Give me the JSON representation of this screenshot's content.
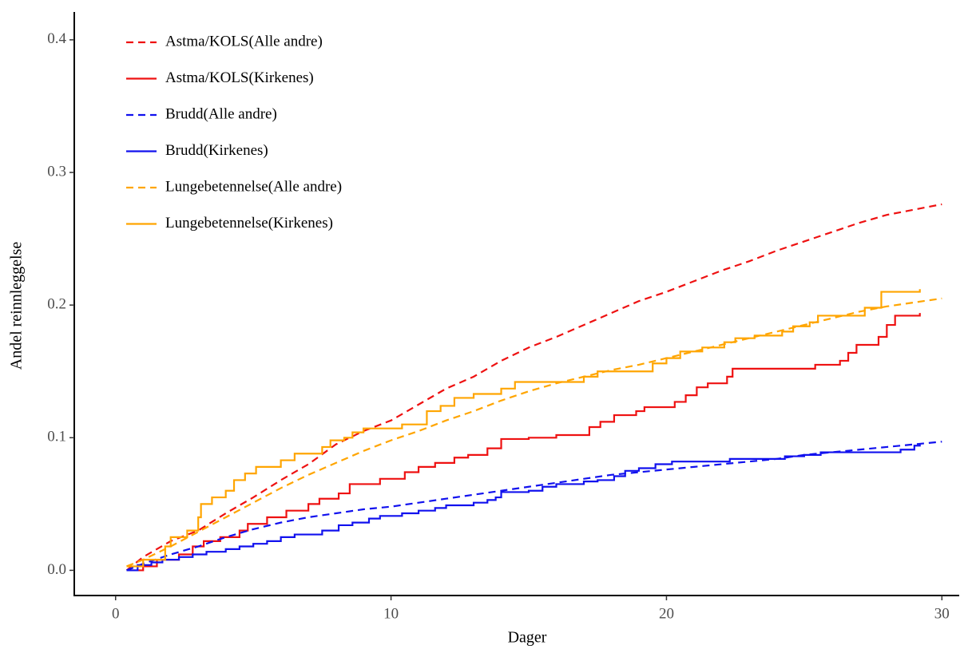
{
  "chart_data": {
    "type": "line",
    "x_label": "Dager",
    "y_label": "Andel reinnleggelse",
    "xlim": [
      -1.5,
      30.6
    ],
    "ylim": [
      -0.019,
      0.421
    ],
    "xticks": [
      0,
      10,
      20,
      30
    ],
    "yticks": [
      {
        "value": 0,
        "label": "0.0"
      },
      0.1,
      0.2,
      0.3,
      0.4
    ],
    "grid": false,
    "legend": "top-left",
    "series": [
      {
        "name": "Astma/KOLS(Alle andre)",
        "color": "#ee1111",
        "dashed": true,
        "step": false,
        "x": [
          0.4,
          1,
          2,
          3,
          4,
          5,
          6,
          7,
          8,
          9,
          10,
          11,
          12,
          13,
          14,
          15,
          16,
          17,
          18,
          19,
          20,
          21,
          22,
          23,
          24,
          25,
          26,
          27,
          28,
          29,
          30
        ],
        "values": [
          0,
          0.01,
          0.022,
          0.03,
          0.043,
          0.055,
          0.068,
          0.08,
          0.095,
          0.105,
          0.113,
          0.125,
          0.137,
          0.146,
          0.158,
          0.168,
          0.176,
          0.185,
          0.194,
          0.203,
          0.21,
          0.218,
          0.226,
          0.233,
          0.241,
          0.248,
          0.255,
          0.262,
          0.268,
          0.272,
          0.276
        ]
      },
      {
        "name": "Astma/KOLS(Kirkenes)",
        "color": "#ee1111",
        "dashed": false,
        "step": true,
        "x": [
          0.4,
          1,
          1.5,
          2.3,
          2.8,
          3.2,
          3.8,
          4.5,
          4.8,
          5.5,
          6.2,
          7,
          7.4,
          8.1,
          8.5,
          9.6,
          10.5,
          11,
          11.6,
          12.3,
          12.8,
          13.5,
          14,
          15,
          16,
          17.2,
          17.6,
          18.1,
          18.9,
          19.2,
          20.3,
          20.7,
          21.1,
          21.5,
          22.2,
          22.4,
          25.4,
          26.3,
          26.6,
          26.9,
          27.7,
          28,
          28.3,
          29.2
        ],
        "values": [
          0,
          0.003,
          0.008,
          0.012,
          0.018,
          0.022,
          0.025,
          0.03,
          0.035,
          0.04,
          0.045,
          0.05,
          0.054,
          0.058,
          0.065,
          0.069,
          0.074,
          0.078,
          0.081,
          0.085,
          0.087,
          0.092,
          0.099,
          0.1,
          0.102,
          0.108,
          0.112,
          0.117,
          0.12,
          0.123,
          0.127,
          0.132,
          0.138,
          0.141,
          0.146,
          0.152,
          0.155,
          0.158,
          0.164,
          0.17,
          0.176,
          0.185,
          0.192,
          0.194
        ]
      },
      {
        "name": "Brudd(Alle andre)",
        "color": "#1111ee",
        "dashed": true,
        "step": false,
        "x": [
          0.4,
          1,
          2,
          3,
          4,
          5,
          6,
          7,
          8,
          9,
          10,
          11,
          12,
          13,
          14,
          15,
          16,
          17,
          18,
          19,
          20,
          21,
          22,
          23,
          24,
          25,
          26,
          27,
          28,
          29,
          30
        ],
        "values": [
          0,
          0.005,
          0.012,
          0.018,
          0.025,
          0.031,
          0.036,
          0.04,
          0.043,
          0.046,
          0.048,
          0.051,
          0.054,
          0.057,
          0.06,
          0.063,
          0.066,
          0.069,
          0.072,
          0.074,
          0.076,
          0.078,
          0.08,
          0.082,
          0.084,
          0.087,
          0.089,
          0.091,
          0.093,
          0.095,
          0.097
        ]
      },
      {
        "name": "Brudd(Kirkenes)",
        "color": "#1111ee",
        "dashed": false,
        "step": true,
        "x": [
          0.4,
          0.8,
          1.3,
          1.7,
          2.3,
          2.8,
          3.3,
          4,
          4.5,
          5,
          5.5,
          6,
          6.5,
          7.5,
          8.1,
          8.6,
          9.2,
          9.6,
          10.4,
          11,
          11.6,
          12,
          13,
          13.5,
          13.8,
          14,
          15,
          15.5,
          16,
          17,
          17.5,
          18.1,
          18.5,
          19,
          19.6,
          20.2,
          22.3,
          24.3,
          25,
          25.6,
          28.5,
          29,
          29.2
        ],
        "values": [
          0,
          0.004,
          0.006,
          0.008,
          0.01,
          0.012,
          0.014,
          0.016,
          0.018,
          0.02,
          0.022,
          0.025,
          0.027,
          0.03,
          0.034,
          0.036,
          0.039,
          0.041,
          0.043,
          0.045,
          0.047,
          0.049,
          0.051,
          0.053,
          0.055,
          0.059,
          0.06,
          0.063,
          0.065,
          0.067,
          0.068,
          0.071,
          0.075,
          0.077,
          0.08,
          0.082,
          0.084,
          0.086,
          0.087,
          0.089,
          0.091,
          0.094,
          0.095
        ]
      },
      {
        "name": "Lungebetennelse(Alle andre)",
        "color": "#ffa500",
        "dashed": true,
        "step": false,
        "x": [
          0.4,
          1,
          2,
          3,
          4,
          5,
          6,
          7,
          8,
          9,
          10,
          11,
          12,
          13,
          14,
          15,
          16,
          17,
          18,
          19,
          20,
          21,
          22,
          23,
          24,
          25,
          26,
          27,
          28,
          29,
          30
        ],
        "values": [
          0.003,
          0.008,
          0.018,
          0.029,
          0.04,
          0.051,
          0.062,
          0.072,
          0.081,
          0.09,
          0.098,
          0.105,
          0.113,
          0.12,
          0.128,
          0.135,
          0.141,
          0.146,
          0.151,
          0.155,
          0.16,
          0.165,
          0.17,
          0.175,
          0.18,
          0.185,
          0.19,
          0.195,
          0.199,
          0.202,
          0.205
        ]
      },
      {
        "name": "Lungebetennelse(Kirkenes)",
        "color": "#ffa500",
        "dashed": false,
        "step": true,
        "x": [
          0.4,
          1,
          1.8,
          2,
          2.6,
          3,
          3.1,
          3.5,
          4,
          4.3,
          4.7,
          5.1,
          6,
          6.5,
          7.5,
          7.8,
          8.3,
          8.6,
          9,
          10.4,
          11.3,
          11.8,
          12.3,
          13,
          14,
          14.5,
          17,
          17.5,
          19.5,
          20,
          20.5,
          21.3,
          22.1,
          22.5,
          23.2,
          24.2,
          24.6,
          25.2,
          25.5,
          27.2,
          27.8,
          29.2
        ],
        "values": [
          0.003,
          0.008,
          0.018,
          0.025,
          0.03,
          0.04,
          0.05,
          0.055,
          0.06,
          0.068,
          0.073,
          0.078,
          0.083,
          0.088,
          0.093,
          0.098,
          0.1,
          0.104,
          0.107,
          0.11,
          0.12,
          0.124,
          0.13,
          0.133,
          0.137,
          0.142,
          0.146,
          0.15,
          0.156,
          0.16,
          0.165,
          0.168,
          0.172,
          0.175,
          0.177,
          0.18,
          0.184,
          0.187,
          0.192,
          0.198,
          0.21,
          0.212
        ]
      }
    ]
  }
}
